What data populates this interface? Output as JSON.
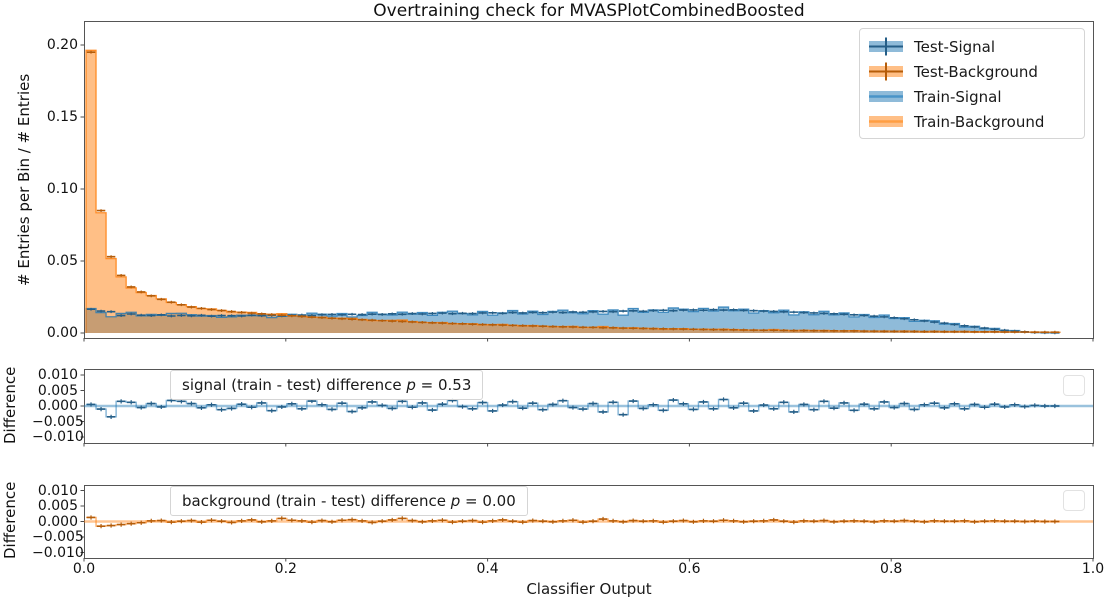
{
  "figure": {
    "title": "Overtraining check for MVASPlotCombinedBoosted"
  },
  "axes": {
    "xlabel": "Classifier Output",
    "x_tick_labels": [
      "0.0",
      "0.2",
      "0.4",
      "0.6",
      "0.8",
      "1.0"
    ],
    "main": {
      "ylabel": "# Entries per Bin / # Entries",
      "y_tick_labels": [
        "0.20",
        "0.15",
        "0.10",
        "0.05",
        "0.00"
      ],
      "y_tick_values": [
        0.2,
        0.15,
        0.1,
        0.05,
        0.0
      ]
    },
    "signal_diff": {
      "ylabel": "Difference",
      "y_tick_labels": [
        "0.010",
        "0.005",
        "0.000",
        "−0.005",
        "−0.010"
      ],
      "y_tick_values": [
        0.01,
        0.005,
        0.0,
        -0.005,
        -0.01
      ]
    },
    "background_diff": {
      "ylabel": "Difference",
      "y_tick_labels": [
        "0.010",
        "0.005",
        "0.000",
        "−0.005",
        "−0.010"
      ],
      "y_tick_values": [
        0.01,
        0.005,
        0.0,
        -0.005,
        -0.01
      ]
    }
  },
  "legend": {
    "items": [
      {
        "label": "Test-Signal"
      },
      {
        "label": "Test-Background"
      },
      {
        "label": "Train-Signal"
      },
      {
        "label": "Train-Background"
      }
    ]
  },
  "annotations": {
    "signal": {
      "prefix": "signal (train - test) difference ",
      "p_symbol": "p",
      "suffix": " = 0.53"
    },
    "background": {
      "prefix": "background (train - test) difference ",
      "p_symbol": "p",
      "suffix": " = 0.00"
    }
  },
  "colors": {
    "signal": "#1f77b4",
    "background": "#ff7f0e",
    "signal_dark": "#255e87",
    "background_dark": "#b55d0a",
    "spine": "#4c4c4c"
  },
  "chart_data": {
    "type": "bar",
    "subtype": "overtraining-check-histograms",
    "title": "Overtraining check for MVASPlotCombinedBoosted",
    "xlabel": "Classifier Output",
    "main_ylabel": "# Entries per Bin / # Entries",
    "diff_ylabel": "Difference",
    "bins": 100,
    "x_min": 0.0,
    "x_max": 1.0,
    "main_ylim": [
      -0.003,
      0.2165
    ],
    "diff_ylim": [
      -0.0119,
      0.0119
    ],
    "grid": false,
    "legend_position": "upper right",
    "p_values": {
      "signal": "0.53",
      "background": "0.00"
    },
    "series": [
      {
        "name": "Test-Signal",
        "style": "errorbar-step",
        "color": "#255e87",
        "values": [
          0.0165,
          0.0152,
          0.0148,
          0.0121,
          0.0132,
          0.0124,
          0.0121,
          0.0126,
          0.0118,
          0.0122,
          0.0119,
          0.0123,
          0.0117,
          0.0121,
          0.012,
          0.0118,
          0.0124,
          0.012,
          0.0122,
          0.0119,
          0.0123,
          0.0125,
          0.0122,
          0.0127,
          0.0129,
          0.0126,
          0.013,
          0.0128,
          0.0131,
          0.0129,
          0.0133,
          0.013,
          0.0135,
          0.0132,
          0.0136,
          0.0138,
          0.0134,
          0.0137,
          0.0135,
          0.0139,
          0.014,
          0.0137,
          0.0142,
          0.0139,
          0.0143,
          0.0141,
          0.0145,
          0.0142,
          0.0146,
          0.0144,
          0.0147,
          0.015,
          0.0148,
          0.0152,
          0.0154,
          0.0151,
          0.0156,
          0.0158,
          0.0155,
          0.0159,
          0.016,
          0.0158,
          0.0162,
          0.0159,
          0.0161,
          0.0157,
          0.0155,
          0.0152,
          0.015,
          0.0147,
          0.0145,
          0.0142,
          0.0139,
          0.0136,
          0.0133,
          0.013,
          0.0126,
          0.0122,
          0.0117,
          0.0112,
          0.0106,
          0.0099,
          0.0092,
          0.0084,
          0.0076,
          0.0068,
          0.0059,
          0.005,
          0.0042,
          0.0034,
          0.0026,
          0.0019,
          0.0013,
          0.0008,
          0.0004,
          0.0002,
          0.0001,
          0.0,
          0.0,
          0.0
        ]
      },
      {
        "name": "Test-Background",
        "style": "errorbar-step",
        "color": "#b55d0a",
        "values": [
          0.195,
          0.085,
          0.053,
          0.04,
          0.032,
          0.0285,
          0.0258,
          0.0234,
          0.0214,
          0.0196,
          0.018,
          0.0171,
          0.0163,
          0.0156,
          0.0149,
          0.0143,
          0.0138,
          0.0133,
          0.0128,
          0.0124,
          0.0119,
          0.0115,
          0.0111,
          0.0107,
          0.0103,
          0.0099,
          0.0096,
          0.0092,
          0.0089,
          0.0086,
          0.0083,
          0.008,
          0.0077,
          0.0074,
          0.0071,
          0.0069,
          0.0066,
          0.0064,
          0.0061,
          0.0059,
          0.0057,
          0.0055,
          0.0053,
          0.0051,
          0.0049,
          0.0047,
          0.0045,
          0.0043,
          0.0042,
          0.004,
          0.0039,
          0.0037,
          0.0036,
          0.0034,
          0.0033,
          0.0032,
          0.003,
          0.0029,
          0.0028,
          0.0027,
          0.0026,
          0.0025,
          0.0024,
          0.0023,
          0.0022,
          0.0021,
          0.002,
          0.0019,
          0.0019,
          0.0018,
          0.0017,
          0.0017,
          0.0016,
          0.0015,
          0.0015,
          0.0014,
          0.0014,
          0.0013,
          0.0013,
          0.0012,
          0.0012,
          0.0011,
          0.0011,
          0.001,
          0.001,
          0.0009,
          0.0009,
          0.0009,
          0.0008,
          0.0008,
          0.0008,
          0.0007,
          0.0007,
          0.0007,
          0.0006,
          0.0006,
          0.0006,
          0.0,
          0.0,
          0.0
        ]
      },
      {
        "name": "Train-Signal",
        "style": "filled-step",
        "color": "#1f77b4",
        "derived_from": "Test-Signal plus signal_train_minus_test"
      },
      {
        "name": "Train-Background",
        "style": "filled-step",
        "color": "#ff7f0e",
        "derived_from": "Test-Background plus background_train_minus_test"
      }
    ],
    "signal_train_minus_test": [
      0.0005,
      -0.001,
      -0.0035,
      0.0015,
      0.0012,
      -0.0005,
      0.0008,
      -0.0003,
      0.0018,
      0.0015,
      0.0008,
      -0.0006,
      0.0004,
      -0.0012,
      -0.0008,
      0.0006,
      -0.0004,
      0.001,
      -0.0015,
      -0.0003,
      0.0007,
      -0.0009,
      0.0016,
      0.0004,
      -0.0011,
      0.0009,
      -0.0018,
      -0.0006,
      0.0013,
      0.0002,
      -0.0008,
      0.0015,
      -0.0004,
      0.001,
      -0.0013,
      0.0006,
      0.0018,
      -0.0002,
      -0.0009,
      0.0011,
      -0.0016,
      0.0003,
      0.0014,
      -0.0007,
      0.0009,
      -0.0012,
      0.0005,
      0.0017,
      -0.0005,
      -0.001,
      0.0008,
      -0.0019,
      0.0012,
      -0.0028,
      0.0016,
      -0.0008,
      0.0004,
      -0.0014,
      0.0019,
      0.0007,
      -0.0011,
      0.0013,
      -0.0009,
      0.0021,
      -0.0006,
      0.0009,
      -0.0016,
      0.0003,
      -0.0009,
      0.0012,
      -0.0019,
      0.0005,
      -0.0012,
      0.0015,
      -0.0007,
      0.001,
      -0.0014,
      0.0006,
      -0.0009,
      0.0013,
      -0.0005,
      0.0008,
      -0.0011,
      0.0004,
      0.0009,
      -0.0006,
      0.0007,
      -0.0009,
      0.0005,
      -0.0004,
      0.0006,
      -0.0003,
      0.0004,
      -0.0002,
      0.0002,
      0.0,
      0.0,
      0.0,
      0.0,
      0.0
    ],
    "background_train_minus_test": [
      0.0013,
      -0.0015,
      -0.0013,
      -0.001,
      -0.0007,
      -0.0004,
      0.0002,
      0.0003,
      -0.0002,
      0.0001,
      0.0003,
      -0.0002,
      0.0004,
      0.0001,
      -0.0003,
      0.0002,
      0.0005,
      -0.0001,
      0.0002,
      0.001,
      0.0004,
      0.0002,
      -0.0002,
      0.0003,
      -0.0001,
      0.0004,
      0.0006,
      0.0002,
      -0.0003,
      0.0001,
      0.0005,
      0.001,
      0.0003,
      -0.0001,
      0.0002,
      0.0004,
      -0.0002,
      0.0001,
      0.0003,
      -0.0002,
      0.0002,
      0.0005,
      0.0001,
      -0.0002,
      0.0003,
      0.0001,
      -0.0001,
      0.0002,
      0.0004,
      -0.0002,
      0.0001,
      0.0008,
      0.0002,
      -0.0001,
      0.0003,
      0.0001,
      0.0002,
      -0.0002,
      0.0001,
      0.0003,
      -0.0001,
      0.0002,
      0.0001,
      0.0004,
      0.0002,
      -0.0001,
      0.0001,
      0.0002,
      0.0005,
      0.0001,
      -0.0002,
      0.0002,
      0.0001,
      0.0003,
      -0.0001,
      0.0001,
      0.0002,
      0.0001,
      -0.0001,
      0.0002,
      0.0001,
      0.0003,
      0.0001,
      -0.0001,
      0.0002,
      0.0001,
      0.0001,
      0.0002,
      -0.0001,
      0.0001,
      0.0002,
      0.0001,
      0.0001,
      0.0,
      0.0001,
      0.0,
      0.0,
      0.0,
      0.0,
      0.0
    ]
  }
}
